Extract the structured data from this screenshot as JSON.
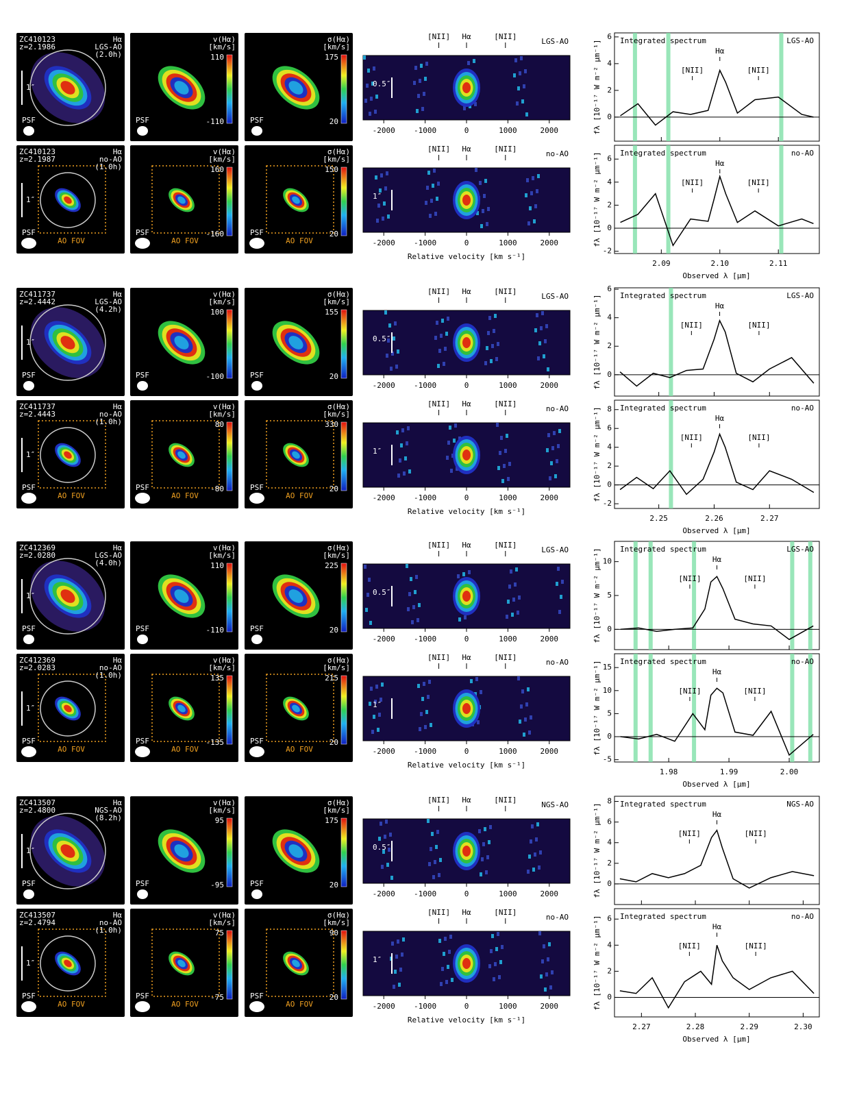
{
  "labels": {
    "line": "Hα",
    "psf": "PSF",
    "fov": "AO FOV",
    "vel": "v(Hα)",
    "disp": "σ(Hα)",
    "unit": "[km/s]",
    "pv_xlabel": "Relative velocity  [km s⁻¹]",
    "spec_title": "Integrated spectrum",
    "spec_xlabel": "Observed λ  [μm]",
    "spec_ylabel": "fλ [10⁻¹⁷ W m⁻² μm⁻¹]",
    "nii": "[NII]"
  },
  "pv_xlim": [
    -2500,
    2500
  ],
  "pv_xticks": [
    -2000,
    -1000,
    0,
    1000,
    2000
  ],
  "pv_lines": [
    -670,
    0,
    940
  ],
  "groups": [
    {
      "id": "ZC410123",
      "spec_xlim": [
        2.082,
        2.117
      ],
      "spec_xticks": [
        2.09,
        {
          "value": 2.1,
          "label": "2.10"
        },
        2.11
      ],
      "sky": [
        2.0855,
        2.0912,
        2.1105
      ],
      "spec_lines": [
        2.0953,
        2.1,
        2.1066
      ],
      "rows": [
        {
          "z": "z=2.1986",
          "mode": "LGS-AO",
          "time": "(2.0h)",
          "scale": "1″",
          "vel": [
            110,
            -110
          ],
          "disp": [
            175,
            20
          ],
          "pv_scale": "0.5″",
          "spec": {
            "ylim": [
              -1.8,
              6.3
            ],
            "yticks": [
              0,
              2,
              4,
              6
            ],
            "x": [
              2.083,
              2.086,
              2.089,
              2.092,
              2.095,
              2.098,
              2.099,
              2.1,
              2.101,
              2.103,
              2.106,
              2.11,
              2.114,
              2.116
            ],
            "values": [
              0.1,
              1.0,
              -0.6,
              0.4,
              0.2,
              0.5,
              2.0,
              3.5,
              2.6,
              0.3,
              1.3,
              1.5,
              0.2,
              0.0
            ]
          }
        },
        {
          "z": "z=2.1987",
          "mode": "no-AO",
          "time": "(1.0h)",
          "scale": "1″",
          "vel": [
            160,
            -160
          ],
          "disp": [
            150,
            20
          ],
          "pv_scale": "1″",
          "spec": {
            "ylim": [
              -2.2,
              7.2
            ],
            "yticks": [
              -2,
              0,
              2,
              4,
              6
            ],
            "x": [
              2.083,
              2.086,
              2.089,
              2.092,
              2.095,
              2.098,
              2.099,
              2.1,
              2.101,
              2.103,
              2.106,
              2.11,
              2.114,
              2.116
            ],
            "values": [
              0.5,
              1.2,
              3.0,
              -1.5,
              0.8,
              0.6,
              2.5,
              4.5,
              3.0,
              0.5,
              1.5,
              0.2,
              0.8,
              0.4
            ]
          }
        }
      ]
    },
    {
      "id": "ZC411737",
      "spec_xlim": [
        2.242,
        2.279
      ],
      "spec_xticks": [
        2.25,
        2.26,
        2.27
      ],
      "sky": [
        2.2522
      ],
      "spec_lines": [
        2.2559,
        2.261,
        2.2681
      ],
      "rows": [
        {
          "z": "z=2.4442",
          "mode": "LGS-AO",
          "time": "(4.2h)",
          "scale": "1″",
          "vel": [
            100,
            -100
          ],
          "disp": [
            155,
            20
          ],
          "pv_scale": "0.5″",
          "spec": {
            "ylim": [
              -1.5,
              6.1
            ],
            "yticks": [
              0,
              2,
              4,
              6
            ],
            "x": [
              2.243,
              2.246,
              2.249,
              2.252,
              2.255,
              2.258,
              2.26,
              2.261,
              2.262,
              2.264,
              2.267,
              2.27,
              2.274,
              2.278
            ],
            "values": [
              0.2,
              -0.8,
              0.1,
              -0.2,
              0.3,
              0.4,
              2.5,
              3.8,
              3.0,
              0.1,
              -0.5,
              0.4,
              1.2,
              -0.6
            ]
          }
        },
        {
          "z": "z=2.4443",
          "mode": "no-AO",
          "time": "(1.0h)",
          "scale": "1″",
          "vel": [
            80,
            -80
          ],
          "disp": [
            330,
            20
          ],
          "pv_scale": "1″",
          "spec": {
            "ylim": [
              -2.5,
              9
            ],
            "yticks": [
              -2,
              0,
              2,
              4,
              6,
              8
            ],
            "x": [
              2.243,
              2.246,
              2.249,
              2.252,
              2.255,
              2.258,
              2.26,
              2.261,
              2.262,
              2.264,
              2.267,
              2.27,
              2.274,
              2.278
            ],
            "values": [
              -0.5,
              0.8,
              -0.4,
              1.5,
              -1.0,
              0.6,
              3.5,
              5.4,
              4.0,
              0.3,
              -0.5,
              1.5,
              0.6,
              -0.8
            ]
          }
        }
      ]
    },
    {
      "id": "ZC412369",
      "spec_xlim": [
        1.971,
        2.005
      ],
      "spec_xticks": [
        1.98,
        1.99,
        {
          "value": 2.0,
          "label": "2.00"
        }
      ],
      "sky": [
        1.9745,
        1.977,
        1.9842,
        2.0005,
        2.0035
      ],
      "spec_lines": [
        1.9835,
        1.988,
        1.9943
      ],
      "rows": [
        {
          "z": "z=2.0280",
          "mode": "LGS-AO",
          "time": "(4.0h)",
          "scale": "1″",
          "vel": [
            110,
            -110
          ],
          "disp": [
            225,
            20
          ],
          "pv_scale": "0.5″",
          "spec": {
            "ylim": [
              -3,
              13
            ],
            "yticks": [
              0,
              5,
              10
            ],
            "x": [
              1.972,
              1.975,
              1.978,
              1.981,
              1.984,
              1.986,
              1.987,
              1.988,
              1.989,
              1.991,
              1.994,
              1.997,
              2.0,
              2.004
            ],
            "values": [
              0,
              0.2,
              -0.3,
              0,
              0.2,
              3.0,
              7.0,
              7.8,
              6.0,
              1.5,
              0.8,
              0.5,
              -1.5,
              0.5
            ]
          }
        },
        {
          "z": "z=2.0283",
          "mode": "no-AO",
          "time": "(1.0h)",
          "scale": "1″",
          "vel": [
            135,
            -135
          ],
          "disp": [
            215,
            20
          ],
          "pv_scale": "1″",
          "spec": {
            "ylim": [
              -5.5,
              18
            ],
            "yticks": [
              -5,
              0,
              5,
              10,
              15
            ],
            "x": [
              1.972,
              1.975,
              1.978,
              1.981,
              1.984,
              1.986,
              1.987,
              1.988,
              1.989,
              1.991,
              1.994,
              1.997,
              2.0,
              2.004
            ],
            "values": [
              0,
              -0.5,
              0.5,
              -1.0,
              5.0,
              1.5,
              9.0,
              10.5,
              9.5,
              1.0,
              0.3,
              5.5,
              -4,
              0.5
            ]
          }
        }
      ]
    },
    {
      "id": "ZC413507",
      "spec_xlim": [
        2.265,
        2.303
      ],
      "spec_xticks": [
        2.27,
        2.28,
        2.29,
        {
          "value": 2.3,
          "label": "2.30"
        }
      ],
      "sky": [],
      "spec_lines": [
        2.2789,
        2.284,
        2.2912
      ],
      "rows": [
        {
          "z": "z=2.4800",
          "mode": "NGS-AO",
          "time": "(8.2h)",
          "scale": "1″",
          "vel": [
            95,
            -95
          ],
          "disp": [
            175,
            20
          ],
          "pv_scale": "0.5″",
          "spec": {
            "ylim": [
              -2,
              8.5
            ],
            "yticks": [
              0,
              2,
              4,
              6,
              8
            ],
            "x": [
              2.266,
              2.269,
              2.272,
              2.275,
              2.278,
              2.281,
              2.283,
              2.284,
              2.285,
              2.287,
              2.29,
              2.294,
              2.298,
              2.302
            ],
            "values": [
              0.5,
              0.2,
              1.0,
              0.6,
              1.0,
              1.8,
              4.5,
              5.2,
              3.5,
              0.5,
              -0.4,
              0.6,
              1.2,
              0.8
            ]
          }
        },
        {
          "z": "z=2.4794",
          "mode": "no-AO",
          "time": "(1.0h)",
          "scale": "1″",
          "vel": [
            75,
            -75
          ],
          "disp": [
            90,
            20
          ],
          "pv_scale": "1″",
          "spec": {
            "ylim": [
              -1.5,
              6.8
            ],
            "yticks": [
              0,
              2,
              4,
              6
            ],
            "x": [
              2.266,
              2.269,
              2.272,
              2.275,
              2.278,
              2.281,
              2.283,
              2.284,
              2.285,
              2.287,
              2.29,
              2.294,
              2.298,
              2.302
            ],
            "values": [
              0.5,
              0.3,
              1.5,
              -0.8,
              1.2,
              2.0,
              1.0,
              4.0,
              2.8,
              1.5,
              0.6,
              1.5,
              2.0,
              0.3
            ]
          }
        }
      ]
    }
  ]
}
